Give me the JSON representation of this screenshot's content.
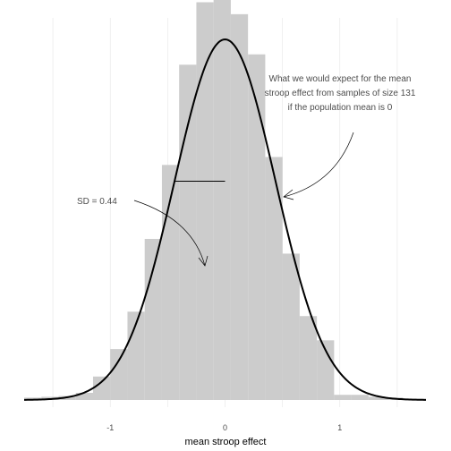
{
  "chart_data": {
    "type": "bar",
    "xlabel": "mean stroop effect",
    "ylabel": "",
    "title": "",
    "xlim": [
      -1.75,
      1.75
    ],
    "x_ticks": [
      -1,
      0,
      1
    ],
    "x_tick_labels": [
      "-1",
      "0",
      "1"
    ],
    "grid": true,
    "histogram": {
      "bin_width": 0.15,
      "bins": [
        {
          "x0": -1.75,
          "x1": -1.6,
          "height": 0.006
        },
        {
          "x0": -1.6,
          "x1": -1.45,
          "height": 0.008
        },
        {
          "x0": -1.45,
          "x1": -1.3,
          "height": 0.01
        },
        {
          "x0": -1.3,
          "x1": -1.15,
          "height": 0.018
        },
        {
          "x0": -1.15,
          "x1": -1.0,
          "height": 0.059
        },
        {
          "x0": -1.0,
          "x1": -0.85,
          "height": 0.128
        },
        {
          "x0": -0.85,
          "x1": -0.7,
          "height": 0.222
        },
        {
          "x0": -0.7,
          "x1": -0.55,
          "height": 0.405
        },
        {
          "x0": -0.55,
          "x1": -0.4,
          "height": 0.591
        },
        {
          "x0": -0.4,
          "x1": -0.25,
          "height": 0.843
        },
        {
          "x0": -0.25,
          "x1": -0.1,
          "height": 1.0
        },
        {
          "x0": -0.1,
          "x1": 0.05,
          "height": 1.116
        },
        {
          "x0": 0.05,
          "x1": 0.2,
          "height": 0.97
        },
        {
          "x0": 0.2,
          "x1": 0.35,
          "height": 0.869
        },
        {
          "x0": 0.35,
          "x1": 0.5,
          "height": 0.611
        },
        {
          "x0": 0.5,
          "x1": 0.65,
          "height": 0.368
        },
        {
          "x0": 0.65,
          "x1": 0.8,
          "height": 0.211
        },
        {
          "x0": 0.8,
          "x1": 0.95,
          "height": 0.15
        },
        {
          "x0": 0.95,
          "x1": 1.1,
          "height": 0.013
        },
        {
          "x0": 1.1,
          "x1": 1.25,
          "height": 0.013
        },
        {
          "x0": 1.25,
          "x1": 1.4,
          "height": 0.008
        },
        {
          "x0": 1.4,
          "x1": 1.55,
          "height": 0.006
        },
        {
          "x0": 1.55,
          "x1": 1.75,
          "height": 0.003
        }
      ]
    },
    "normal_curve": {
      "mean": 0,
      "sd": 0.44,
      "x_from": -1.75,
      "x_to": 1.75
    },
    "sd_marker": {
      "x_from": -0.44,
      "x_to": 0,
      "y": 0.55
    },
    "colors": {
      "bars": "#cccccc",
      "curve": "#000000",
      "grid": "#e5e5e5",
      "annotation_text": "#4d4d4d"
    },
    "annotations": {
      "curve_note": [
        "What we would expect for the mean",
        "stroop effect from samples of size 131",
        "if the population mean is 0"
      ],
      "sd_note": "SD = 0.44"
    }
  }
}
